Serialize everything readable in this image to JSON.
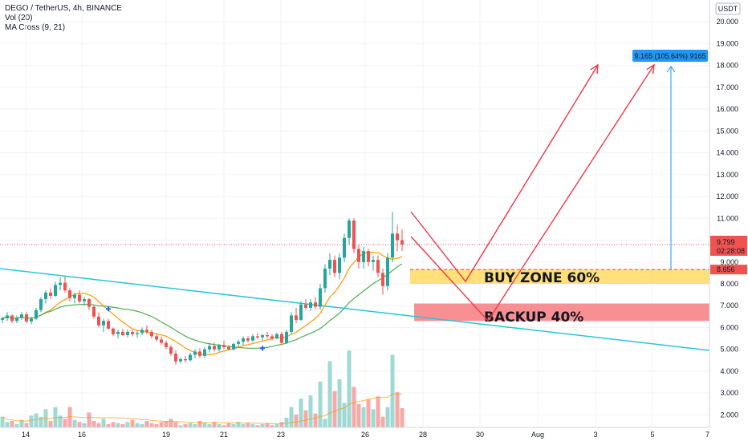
{
  "legend": {
    "symbol": "DEGO / TetherUS, 4h, BINANCE",
    "volume": "Vol (20)",
    "ma_cross": "MA Cross (9, 21)"
  },
  "price_axis": {
    "currency": "USDT",
    "current_price": "9.799",
    "countdown": "02:28:08",
    "level_label": "8.656"
  },
  "measure_label": "9.165 (105.64%) 9165",
  "zones": {
    "buy": "BUY ZONE 60%",
    "backup": "BACKUP 40%"
  },
  "colors": {
    "up": "#26a69a",
    "down": "#ef5350",
    "ma_fast": "#ff9800",
    "ma_slow": "#4caf50",
    "trendline": "#26c6da",
    "arrows": "#f23645",
    "measure": "#2196f3",
    "buy_zone": "#ffd54f",
    "backup_zone": "#f77c80"
  },
  "chart_data": {
    "type": "candlestick",
    "title": "DEGO / TetherUS, 4h, BINANCE",
    "x_ticks": [
      "14",
      "16",
      "19",
      "21",
      "23",
      "26",
      "28",
      "30",
      "Aug",
      "3",
      "5",
      "7"
    ],
    "y_ticks": [
      "2.000",
      "3.000",
      "4.000",
      "5.000",
      "6.000",
      "7.000",
      "8.000",
      "9.000",
      "10.000",
      "11.000",
      "12.000",
      "13.000",
      "14.000",
      "15.000",
      "16.000",
      "17.000",
      "18.000",
      "19.000",
      "20.000"
    ],
    "ylim": [
      1.35,
      21.0
    ],
    "last_price": 9.799,
    "buy_zone": [
      8.0,
      8.656
    ],
    "backup_zone": [
      6.3,
      7.1
    ],
    "target": 18.0,
    "candles": [
      [
        6.35,
        6.5,
        6.2,
        6.42
      ],
      [
        6.42,
        6.7,
        6.3,
        6.55
      ],
      [
        6.55,
        6.6,
        6.2,
        6.3
      ],
      [
        6.3,
        6.55,
        6.2,
        6.45
      ],
      [
        6.45,
        6.7,
        6.35,
        6.6
      ],
      [
        6.6,
        6.7,
        6.2,
        6.28
      ],
      [
        6.28,
        6.5,
        6.15,
        6.4
      ],
      [
        6.4,
        6.9,
        6.35,
        6.8
      ],
      [
        6.8,
        7.4,
        6.7,
        7.3
      ],
      [
        7.3,
        7.7,
        7.1,
        7.6
      ],
      [
        7.6,
        7.8,
        7.3,
        7.45
      ],
      [
        7.45,
        8.1,
        7.4,
        7.95
      ],
      [
        7.95,
        8.3,
        7.7,
        8.05
      ],
      [
        8.05,
        8.35,
        7.6,
        7.7
      ],
      [
        7.7,
        7.8,
        7.2,
        7.35
      ],
      [
        7.35,
        7.6,
        7.1,
        7.5
      ],
      [
        7.5,
        7.7,
        7.1,
        7.2
      ],
      [
        7.2,
        7.4,
        7.0,
        7.3
      ],
      [
        7.3,
        7.35,
        6.8,
        6.95
      ],
      [
        6.95,
        7.0,
        6.4,
        6.5
      ],
      [
        6.5,
        6.7,
        6.0,
        6.1
      ],
      [
        6.1,
        6.4,
        5.8,
        6.3
      ],
      [
        6.3,
        6.4,
        5.9,
        5.95
      ],
      [
        5.95,
        6.0,
        5.6,
        5.7
      ],
      [
        5.7,
        5.9,
        5.5,
        5.8
      ],
      [
        5.8,
        5.95,
        5.6,
        5.65
      ],
      [
        5.65,
        5.9,
        5.55,
        5.8
      ],
      [
        5.8,
        5.9,
        5.6,
        5.7
      ],
      [
        5.7,
        5.85,
        5.55,
        5.75
      ],
      [
        5.75,
        6.0,
        5.65,
        5.9
      ],
      [
        5.9,
        6.1,
        5.7,
        5.8
      ],
      [
        5.8,
        5.9,
        5.5,
        5.6
      ],
      [
        5.6,
        5.7,
        5.35,
        5.45
      ],
      [
        5.45,
        5.6,
        5.2,
        5.3
      ],
      [
        5.3,
        5.4,
        5.0,
        5.1
      ],
      [
        5.1,
        5.2,
        4.7,
        4.8
      ],
      [
        4.8,
        4.95,
        4.3,
        4.45
      ],
      [
        4.45,
        4.65,
        4.35,
        4.55
      ],
      [
        4.55,
        4.7,
        4.4,
        4.5
      ],
      [
        4.5,
        4.85,
        4.45,
        4.75
      ],
      [
        4.75,
        5.0,
        4.6,
        4.9
      ],
      [
        4.9,
        5.05,
        4.6,
        4.7
      ],
      [
        4.7,
        5.1,
        4.6,
        5.0
      ],
      [
        5.0,
        5.3,
        4.85,
        5.15
      ],
      [
        5.15,
        5.3,
        4.9,
        5.0
      ],
      [
        5.0,
        5.25,
        4.9,
        5.2
      ],
      [
        5.2,
        5.4,
        5.0,
        5.1
      ],
      [
        5.1,
        5.2,
        4.95,
        5.0
      ],
      [
        5.0,
        5.3,
        4.95,
        5.25
      ],
      [
        5.25,
        5.45,
        5.1,
        5.35
      ],
      [
        5.35,
        5.6,
        5.2,
        5.5
      ],
      [
        5.5,
        5.6,
        5.3,
        5.4
      ],
      [
        5.4,
        5.7,
        5.35,
        5.6
      ],
      [
        5.6,
        5.75,
        5.45,
        5.55
      ],
      [
        5.55,
        5.7,
        5.4,
        5.65
      ],
      [
        5.65,
        5.8,
        5.5,
        5.6
      ],
      [
        5.6,
        5.7,
        5.4,
        5.5
      ],
      [
        5.5,
        5.75,
        5.45,
        5.7
      ],
      [
        5.7,
        5.8,
        5.2,
        5.3
      ],
      [
        5.3,
        5.9,
        5.25,
        5.8
      ],
      [
        5.8,
        6.7,
        5.7,
        6.55
      ],
      [
        6.55,
        6.9,
        6.2,
        6.35
      ],
      [
        6.35,
        7.2,
        6.3,
        7.05
      ],
      [
        7.05,
        7.3,
        6.8,
        6.9
      ],
      [
        6.9,
        7.3,
        6.75,
        7.15
      ],
      [
        7.15,
        7.4,
        6.85,
        6.95
      ],
      [
        6.95,
        8.0,
        6.8,
        7.8
      ],
      [
        7.8,
        8.9,
        7.6,
        8.7
      ],
      [
        8.7,
        9.4,
        8.4,
        9.1
      ],
      [
        9.1,
        9.3,
        8.3,
        8.5
      ],
      [
        8.5,
        9.4,
        8.2,
        9.2
      ],
      [
        9.2,
        10.3,
        9.0,
        10.1
      ],
      [
        10.1,
        11.0,
        9.8,
        10.9
      ],
      [
        10.9,
        11.0,
        9.4,
        9.6
      ],
      [
        9.6,
        9.8,
        8.7,
        9.0
      ],
      [
        9.0,
        9.7,
        8.7,
        9.5
      ],
      [
        9.5,
        9.6,
        8.8,
        9.0
      ],
      [
        9.0,
        9.3,
        8.6,
        9.1
      ],
      [
        9.1,
        9.3,
        8.3,
        8.5
      ],
      [
        8.5,
        8.7,
        7.5,
        7.9
      ],
      [
        7.9,
        9.4,
        7.7,
        9.2
      ],
      [
        9.2,
        11.3,
        9.0,
        10.3
      ],
      [
        10.3,
        10.7,
        9.5,
        10.0
      ],
      [
        10.0,
        10.5,
        9.5,
        9.799
      ]
    ],
    "volume": [
      1.0,
      0.5,
      0.6,
      0.3,
      0.7,
      0.4,
      1.1,
      1.3,
      1.0,
      1.7,
      0.6,
      1.9,
      1.1,
      0.8,
      1.9,
      0.7,
      0.5,
      0.4,
      1.4,
      0.6,
      0.4,
      0.8,
      0.3,
      0.5,
      0.4,
      0.3,
      0.5,
      0.7,
      0.4,
      0.3,
      0.6,
      0.4,
      0.3,
      0.5,
      0.6,
      0.8,
      0.5,
      0.2,
      0.3,
      0.4,
      0.3,
      0.6,
      0.4,
      0.3,
      0.5,
      0.3,
      0.2,
      0.4,
      0.3,
      0.5,
      0.3,
      0.4,
      0.3,
      0.2,
      0.3,
      0.4,
      0.2,
      0.3,
      0.5,
      0.9,
      1.9,
      1.2,
      2.7,
      1.6,
      3.0,
      1.3,
      4.3,
      0.8,
      6.2,
      3.4,
      4.5,
      2.3,
      7.2,
      3.8,
      2.2,
      1.9,
      2.6,
      1.7,
      2.9,
      1.0,
      1.9,
      6.8,
      3.3,
      1.8
    ]
  }
}
